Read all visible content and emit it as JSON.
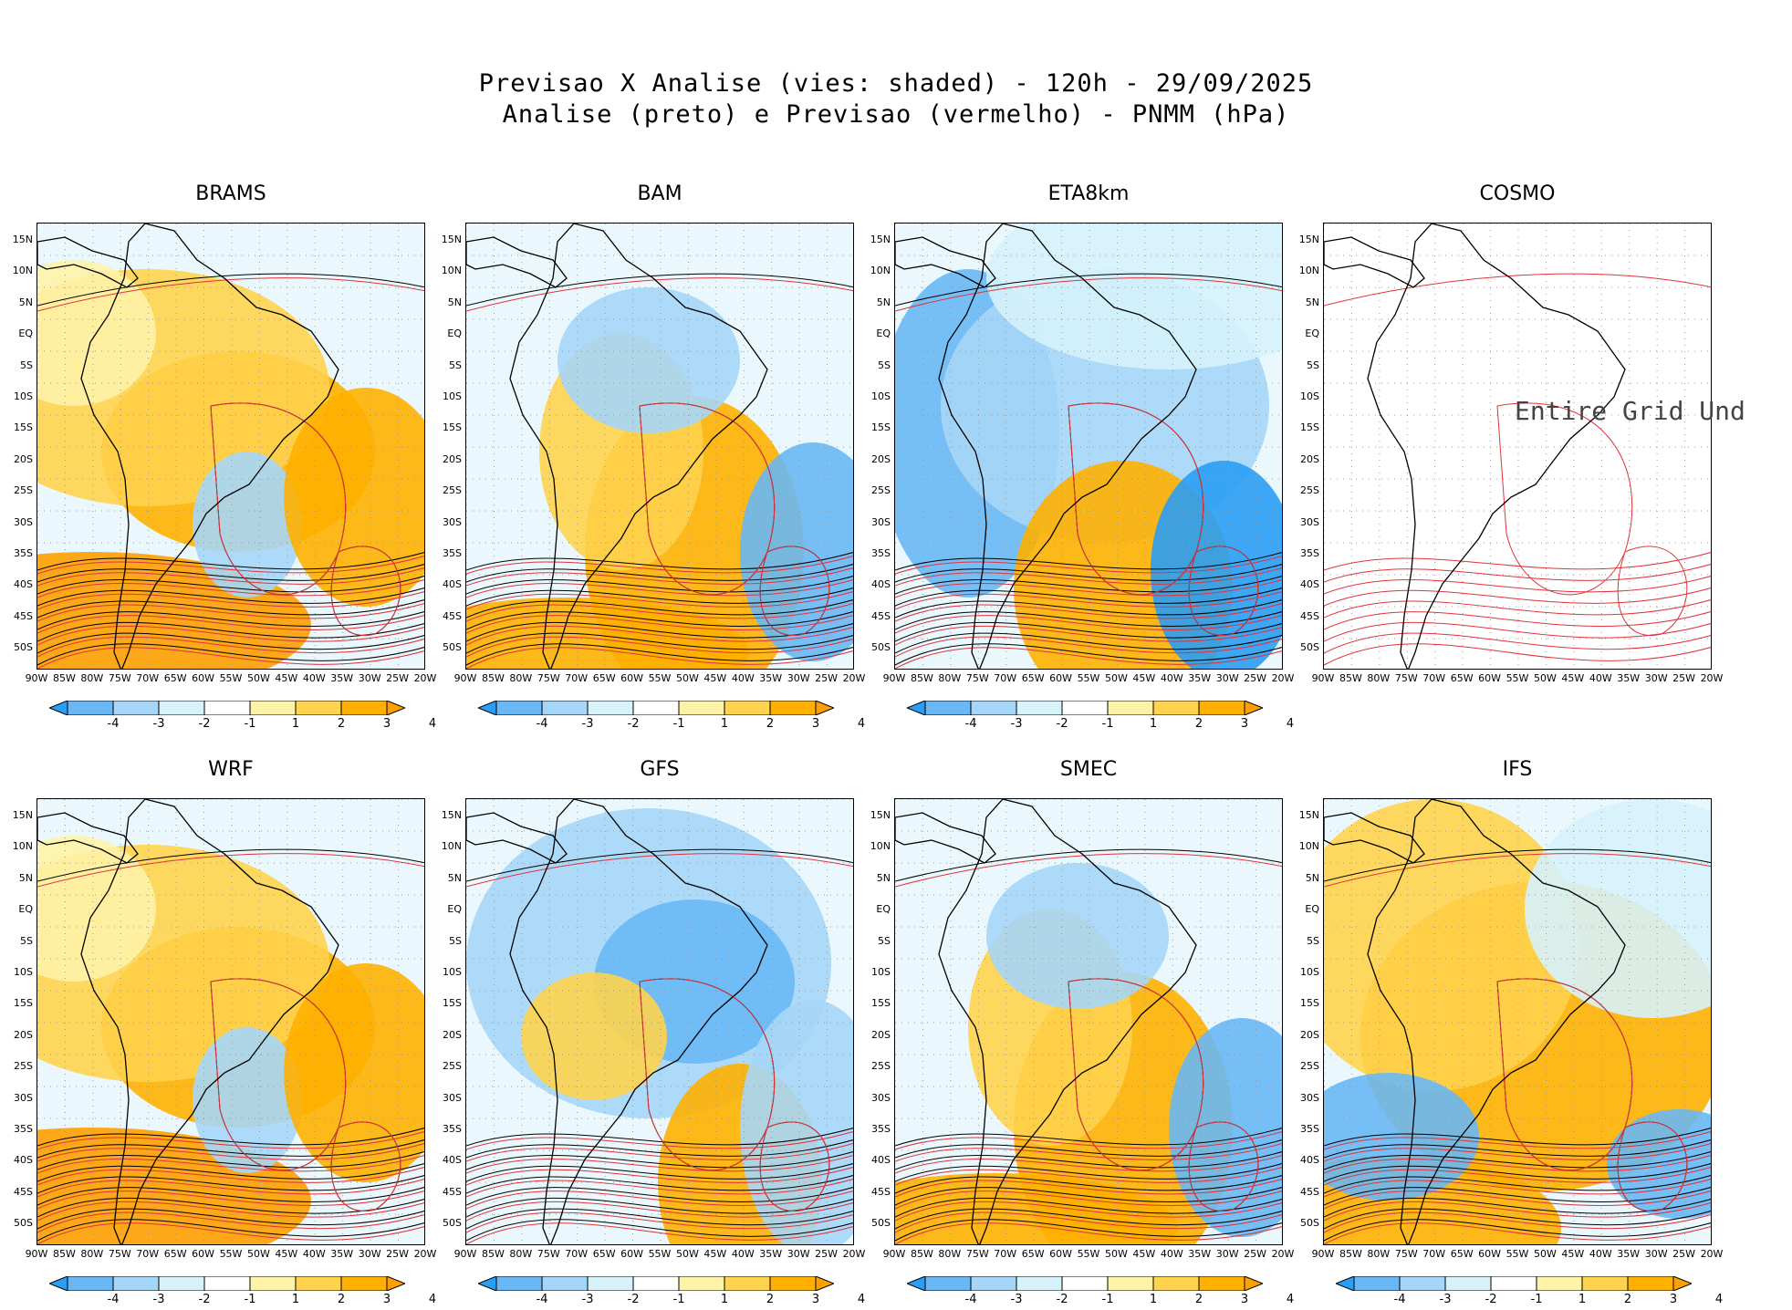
{
  "header": {
    "line1": "Previsao X Analise (vies: shaded) - 120h - 29/09/2025",
    "line2": "Analise (preto) e Previsao (vermelho) - PNMM (hPa)"
  },
  "axes": {
    "lat_labels": [
      "15N",
      "10N",
      "5N",
      "EQ",
      "5S",
      "10S",
      "15S",
      "20S",
      "25S",
      "30S",
      "35S",
      "40S",
      "45S",
      "50S"
    ],
    "lon_labels": [
      "90W",
      "85W",
      "80W",
      "75W",
      "70W",
      "65W",
      "60W",
      "55W",
      "50W",
      "45W",
      "40W",
      "35W",
      "30W",
      "25W",
      "20W"
    ]
  },
  "colorbar": {
    "labels": [
      "-4",
      "-3",
      "-2",
      "-1",
      "1",
      "2",
      "3",
      "4"
    ],
    "colors": [
      "#2a9df4",
      "#69b8f5",
      "#a6d6f7",
      "#d6f2fb",
      "#ffffff",
      "#fff3a8",
      "#ffd34d",
      "#ffb000",
      "#ff9f00"
    ]
  },
  "panels": [
    {
      "name": "BRAMS",
      "style": "warm"
    },
    {
      "name": "BAM",
      "style": "mixed"
    },
    {
      "name": "ETA8km",
      "style": "cool"
    },
    {
      "name": "COSMO",
      "style": "none",
      "overlay": "Entire Grid Und"
    },
    {
      "name": "WRF",
      "style": "warm"
    },
    {
      "name": "GFS",
      "style": "cool2"
    },
    {
      "name": "SMEC",
      "style": "mixed"
    },
    {
      "name": "IFS",
      "style": "warm2"
    }
  ],
  "colors": {
    "analysis": "#000000",
    "forecast": "#e0343a",
    "land": "#000000"
  }
}
